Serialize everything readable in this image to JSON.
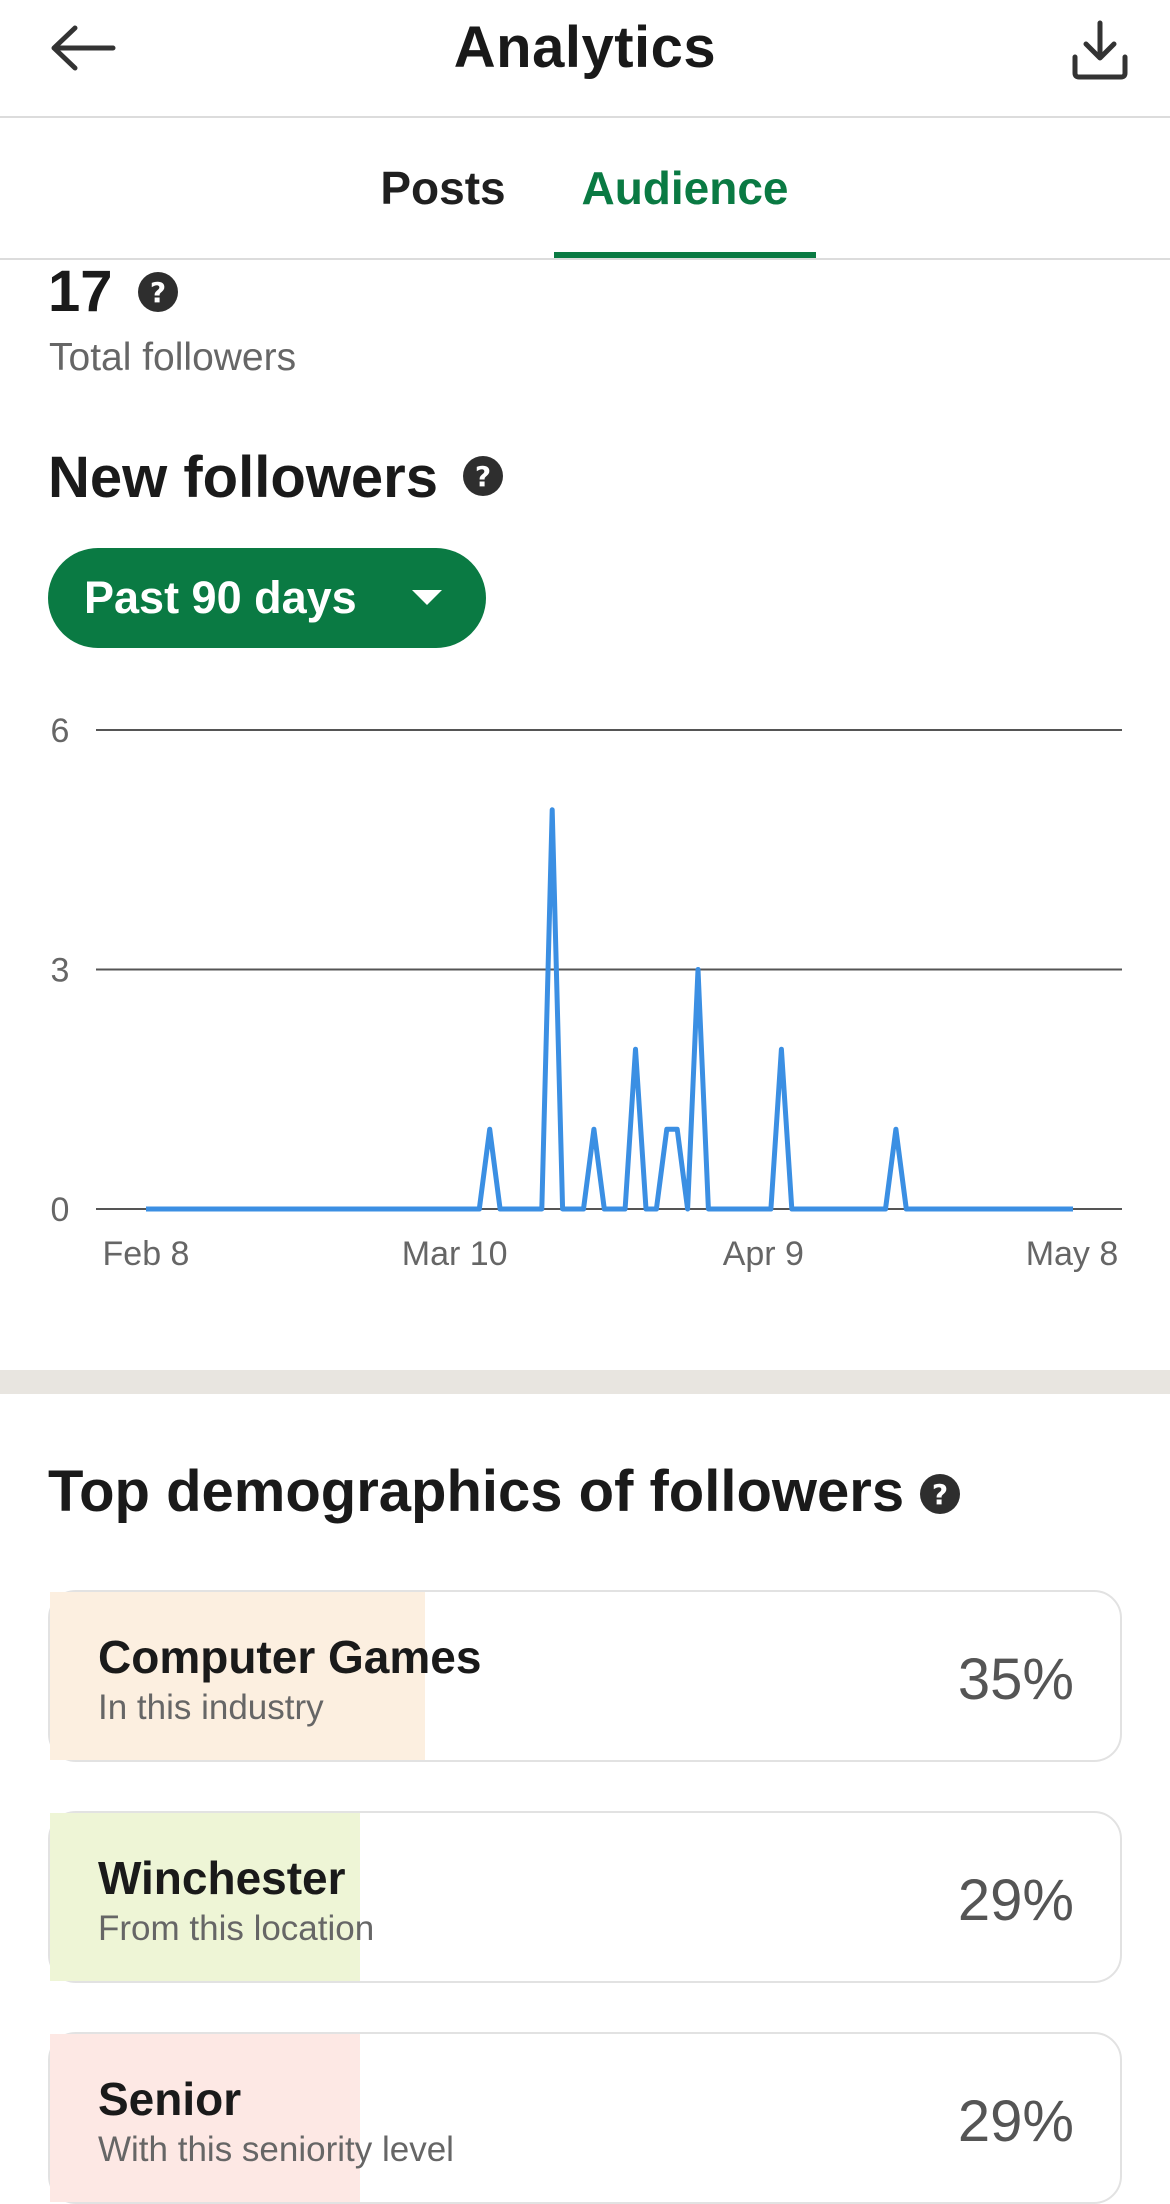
{
  "header": {
    "title": "Analytics",
    "back_icon": "arrow-left-icon",
    "download_icon": "download-icon"
  },
  "tabs": [
    {
      "label": "Posts",
      "active": false
    },
    {
      "label": "Audience",
      "active": true
    }
  ],
  "colors": {
    "accent": "#0a7a43",
    "chart_line": "#3b8fe3",
    "card_industry": "#fcefe0",
    "card_location": "#eef5d6",
    "card_seniority": "#fde8e4"
  },
  "total": {
    "value": "17",
    "label": "Total followers"
  },
  "new_followers": {
    "title": "New followers",
    "range_label": "Past 90 days"
  },
  "chart_data": {
    "type": "line",
    "x_labels": [
      "Feb 8",
      "Mar 10",
      "Apr 9",
      "May 8"
    ],
    "y_ticks": [
      "0",
      "3",
      "6"
    ],
    "ylim": [
      0,
      6
    ],
    "grid": true,
    "series": [
      {
        "values": [
          0,
          0,
          0,
          0,
          0,
          0,
          0,
          0,
          0,
          0,
          0,
          0,
          0,
          0,
          0,
          0,
          0,
          0,
          0,
          0,
          0,
          0,
          0,
          0,
          0,
          0,
          0,
          0,
          0,
          0,
          0,
          0,
          0,
          1,
          0,
          0,
          0,
          0,
          0,
          5,
          0,
          0,
          0,
          1,
          0,
          0,
          0,
          2,
          0,
          0,
          1,
          1,
          0,
          3,
          0,
          0,
          0,
          0,
          0,
          0,
          0,
          2,
          0,
          0,
          0,
          0,
          0,
          0,
          0,
          0,
          0,
          0,
          1,
          0,
          0,
          0,
          0,
          0,
          0,
          0,
          0,
          0,
          0,
          0,
          0,
          0,
          0,
          0,
          0,
          0
        ]
      }
    ]
  },
  "demographics": {
    "title": "Top demographics of followers",
    "items": [
      {
        "name": "Computer Games",
        "sub": "In this industry",
        "pct": "35%",
        "fill": 0.35
      },
      {
        "name": "Winchester",
        "sub": "From this location",
        "pct": "29%",
        "fill": 0.29
      },
      {
        "name": "Senior",
        "sub": "With this seniority level",
        "pct": "29%",
        "fill": 0.29
      }
    ]
  }
}
